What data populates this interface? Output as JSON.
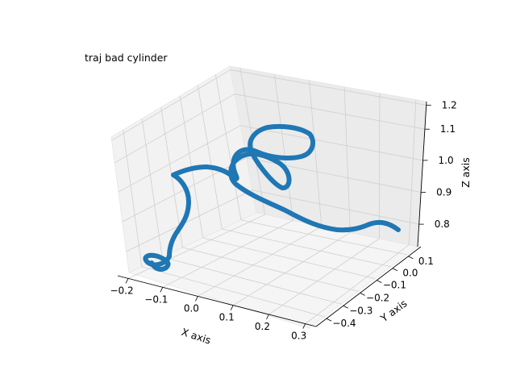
{
  "chart_data": {
    "type": "line3d",
    "title": "traj bad cylinder",
    "xlabel": "X axis",
    "ylabel": "Y axis",
    "zlabel": "Z axis",
    "xlim": [
      -0.26,
      0.35
    ],
    "ylim": [
      -0.45,
      0.18
    ],
    "zlim": [
      0.72,
      1.27
    ],
    "x_ticks": [
      "−0.2",
      "−0.1",
      "0.0",
      "0.1",
      "0.2",
      "0.3"
    ],
    "y_ticks": [
      "−0.4",
      "−0.3",
      "−0.2",
      "−0.1",
      "0.0",
      "0.1"
    ],
    "z_ticks": [
      "0.8",
      "0.9",
      "1.0",
      "1.1",
      "1.2"
    ],
    "grid": true,
    "series": [
      {
        "color": "#1f77b4"
      }
    ]
  }
}
